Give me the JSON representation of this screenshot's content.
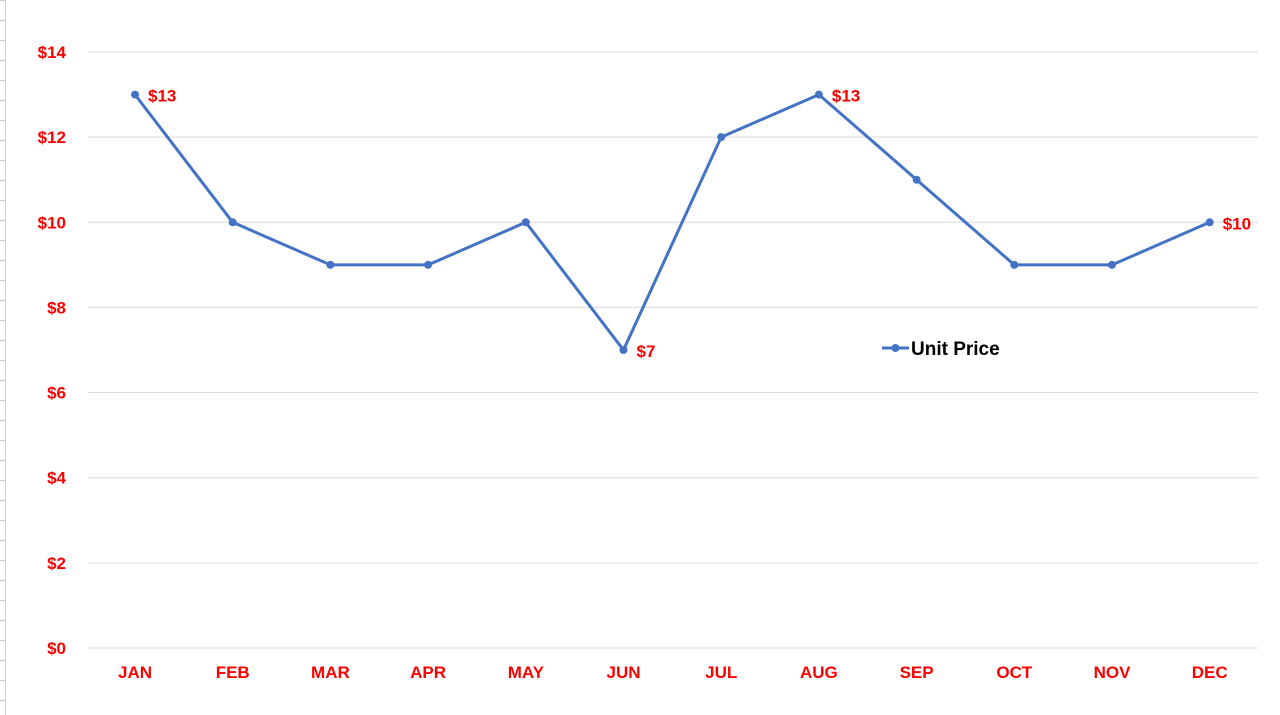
{
  "chart_data": {
    "type": "line",
    "categories": [
      "JAN",
      "FEB",
      "MAR",
      "APR",
      "MAY",
      "JUN",
      "JUL",
      "AUG",
      "SEP",
      "OCT",
      "NOV",
      "DEC"
    ],
    "series": [
      {
        "name": "Unit Price",
        "values": [
          13,
          10,
          9,
          9,
          10,
          7,
          12,
          13,
          11,
          9,
          9,
          10
        ],
        "color": "#4472c4"
      }
    ],
    "y_tick_labels": [
      "$0",
      "$2",
      "$4",
      "$6",
      "$8",
      "$10",
      "$12",
      "$14"
    ],
    "y_ticks": [
      0,
      2,
      4,
      6,
      8,
      10,
      12,
      14
    ],
    "ylim": [
      0,
      14
    ],
    "data_labels": [
      {
        "index": 0,
        "text": "$13"
      },
      {
        "index": 5,
        "text": "$7"
      },
      {
        "index": 7,
        "text": "$13"
      },
      {
        "index": 11,
        "text": "$10"
      }
    ],
    "title": "",
    "xlabel": "",
    "ylabel": "",
    "grid": true,
    "legend_position": "right-middle",
    "tick_label_color": "#ff0000",
    "data_label_color": "#ff0000",
    "grid_color": "#d9d9d9",
    "legend_text_color": "#000000"
  }
}
